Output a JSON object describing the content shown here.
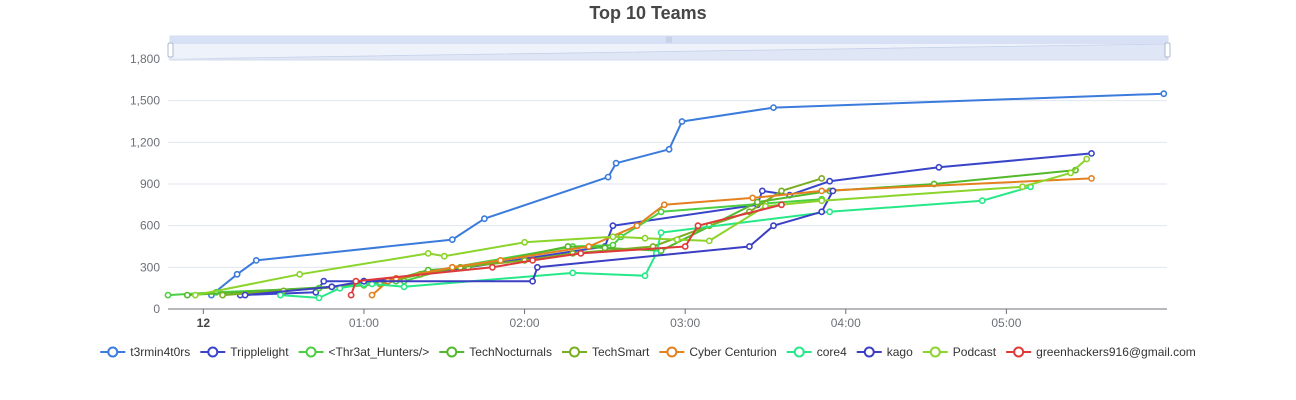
{
  "chart_data": {
    "type": "line",
    "title": "Top 10 Teams",
    "xlabel": "",
    "ylabel": "",
    "x_unit": "hours since start",
    "xlim": [
      -0.22,
      6.0
    ],
    "ylim": [
      0,
      1800
    ],
    "y_ticks": [
      0,
      300,
      600,
      900,
      1200,
      1500,
      1800
    ],
    "y_tick_labels": [
      "0",
      "300",
      "600",
      "900",
      "1,200",
      "1,500",
      "1,800"
    ],
    "x_ticks": [
      {
        "value": 0,
        "label": "12",
        "bold": true
      },
      {
        "value": 1,
        "label": "01:00",
        "bold": false
      },
      {
        "value": 2,
        "label": "02:00",
        "bold": false
      },
      {
        "value": 3,
        "label": "03:00",
        "bold": false
      },
      {
        "value": 4,
        "label": "04:00",
        "bold": false
      },
      {
        "value": 5,
        "label": "05:00",
        "bold": false
      }
    ],
    "grid": true,
    "legend_position": "bottom",
    "data_zoom_slider": true,
    "series": [
      {
        "name": "t3rmin4t0rs",
        "color": "#3b7bdb",
        "points": [
          [
            0.05,
            100
          ],
          [
            0.21,
            250
          ],
          [
            0.33,
            350
          ],
          [
            1.55,
            500
          ],
          [
            1.75,
            650
          ],
          [
            2.52,
            950
          ],
          [
            2.57,
            1050
          ],
          [
            2.9,
            1150
          ],
          [
            2.98,
            1350
          ],
          [
            3.55,
            1450
          ],
          [
            5.98,
            1550
          ]
        ]
      },
      {
        "name": "Tripplelight",
        "color": "#3a44c9",
        "points": [
          [
            0.23,
            100
          ],
          [
            0.7,
            120
          ],
          [
            0.75,
            200
          ],
          [
            1.0,
            200
          ],
          [
            1.2,
            220
          ],
          [
            2.5,
            450
          ],
          [
            2.55,
            600
          ],
          [
            3.45,
            750
          ],
          [
            3.48,
            850
          ],
          [
            3.65,
            820
          ],
          [
            3.9,
            920
          ],
          [
            4.58,
            1020
          ],
          [
            5.53,
            1120
          ]
        ]
      },
      {
        "name": "<Thr3at_Hunters/>",
        "color": "#4ccf42",
        "points": [
          [
            -0.22,
            100
          ],
          [
            0.08,
            120
          ],
          [
            0.72,
            150
          ],
          [
            1.0,
            170
          ],
          [
            1.2,
            200
          ],
          [
            1.25,
            200
          ],
          [
            1.55,
            300
          ],
          [
            2.3,
            450
          ],
          [
            2.55,
            460
          ],
          [
            2.6,
            520
          ],
          [
            2.85,
            700
          ],
          [
            3.5,
            760
          ],
          [
            3.85,
            790
          ]
        ]
      },
      {
        "name": "TechNocturnals",
        "color": "#52b92c",
        "points": [
          [
            -0.1,
            100
          ],
          [
            0.8,
            160
          ],
          [
            1.15,
            200
          ],
          [
            1.4,
            280
          ],
          [
            1.65,
            300
          ],
          [
            2.27,
            450
          ],
          [
            2.5,
            440
          ],
          [
            2.85,
            420
          ],
          [
            3.45,
            770
          ],
          [
            3.9,
            850
          ],
          [
            4.55,
            900
          ],
          [
            5.43,
            1000
          ]
        ]
      },
      {
        "name": "TechSmart",
        "color": "#7aad22",
        "points": [
          [
            0.12,
            100
          ],
          [
            0.5,
            130
          ],
          [
            1.1,
            180
          ],
          [
            1.35,
            250
          ],
          [
            1.6,
            300
          ],
          [
            2.0,
            350
          ],
          [
            2.3,
            400
          ],
          [
            2.8,
            450
          ],
          [
            3.15,
            600
          ],
          [
            3.4,
            700
          ],
          [
            3.6,
            850
          ],
          [
            3.85,
            940
          ]
        ]
      },
      {
        "name": "Cyber Centurion",
        "color": "#e4801f",
        "points": [
          [
            1.05,
            100
          ],
          [
            1.15,
            200
          ],
          [
            1.2,
            220
          ],
          [
            1.55,
            300
          ],
          [
            1.85,
            350
          ],
          [
            2.4,
            450
          ],
          [
            2.7,
            600
          ],
          [
            2.87,
            750
          ],
          [
            3.42,
            800
          ],
          [
            3.85,
            850
          ],
          [
            5.53,
            940
          ]
        ]
      },
      {
        "name": "core4",
        "color": "#27e888",
        "points": [
          [
            0.48,
            100
          ],
          [
            0.72,
            80
          ],
          [
            0.85,
            150
          ],
          [
            1.0,
            180
          ],
          [
            1.05,
            180
          ],
          [
            1.25,
            160
          ],
          [
            2.3,
            260
          ],
          [
            2.75,
            240
          ],
          [
            2.82,
            400
          ],
          [
            2.85,
            550
          ],
          [
            3.9,
            700
          ],
          [
            4.85,
            780
          ],
          [
            5.15,
            880
          ]
        ]
      },
      {
        "name": "kago",
        "color": "#3c3fc4",
        "points": [
          [
            0.26,
            100
          ],
          [
            0.8,
            160
          ],
          [
            1.0,
            200
          ],
          [
            2.05,
            200
          ],
          [
            2.08,
            300
          ],
          [
            3.4,
            450
          ],
          [
            3.55,
            600
          ],
          [
            3.85,
            700
          ],
          [
            3.92,
            850
          ]
        ]
      },
      {
        "name": "Podcast",
        "color": "#8bd42a",
        "points": [
          [
            -0.05,
            100
          ],
          [
            0.6,
            250
          ],
          [
            1.4,
            400
          ],
          [
            1.5,
            380
          ],
          [
            2.0,
            480
          ],
          [
            2.55,
            520
          ],
          [
            2.75,
            510
          ],
          [
            2.95,
            500
          ],
          [
            3.15,
            490
          ],
          [
            3.5,
            740
          ],
          [
            3.85,
            780
          ],
          [
            5.1,
            880
          ],
          [
            5.4,
            980
          ],
          [
            5.5,
            1080
          ]
        ]
      },
      {
        "name": "greenhackers916@gmail.com",
        "color": "#df3a3a",
        "points": [
          [
            0.92,
            100
          ],
          [
            0.95,
            200
          ],
          [
            1.8,
            300
          ],
          [
            2.05,
            350
          ],
          [
            2.35,
            400
          ],
          [
            3.0,
            450
          ],
          [
            3.08,
            600
          ],
          [
            3.6,
            750
          ]
        ]
      }
    ]
  }
}
